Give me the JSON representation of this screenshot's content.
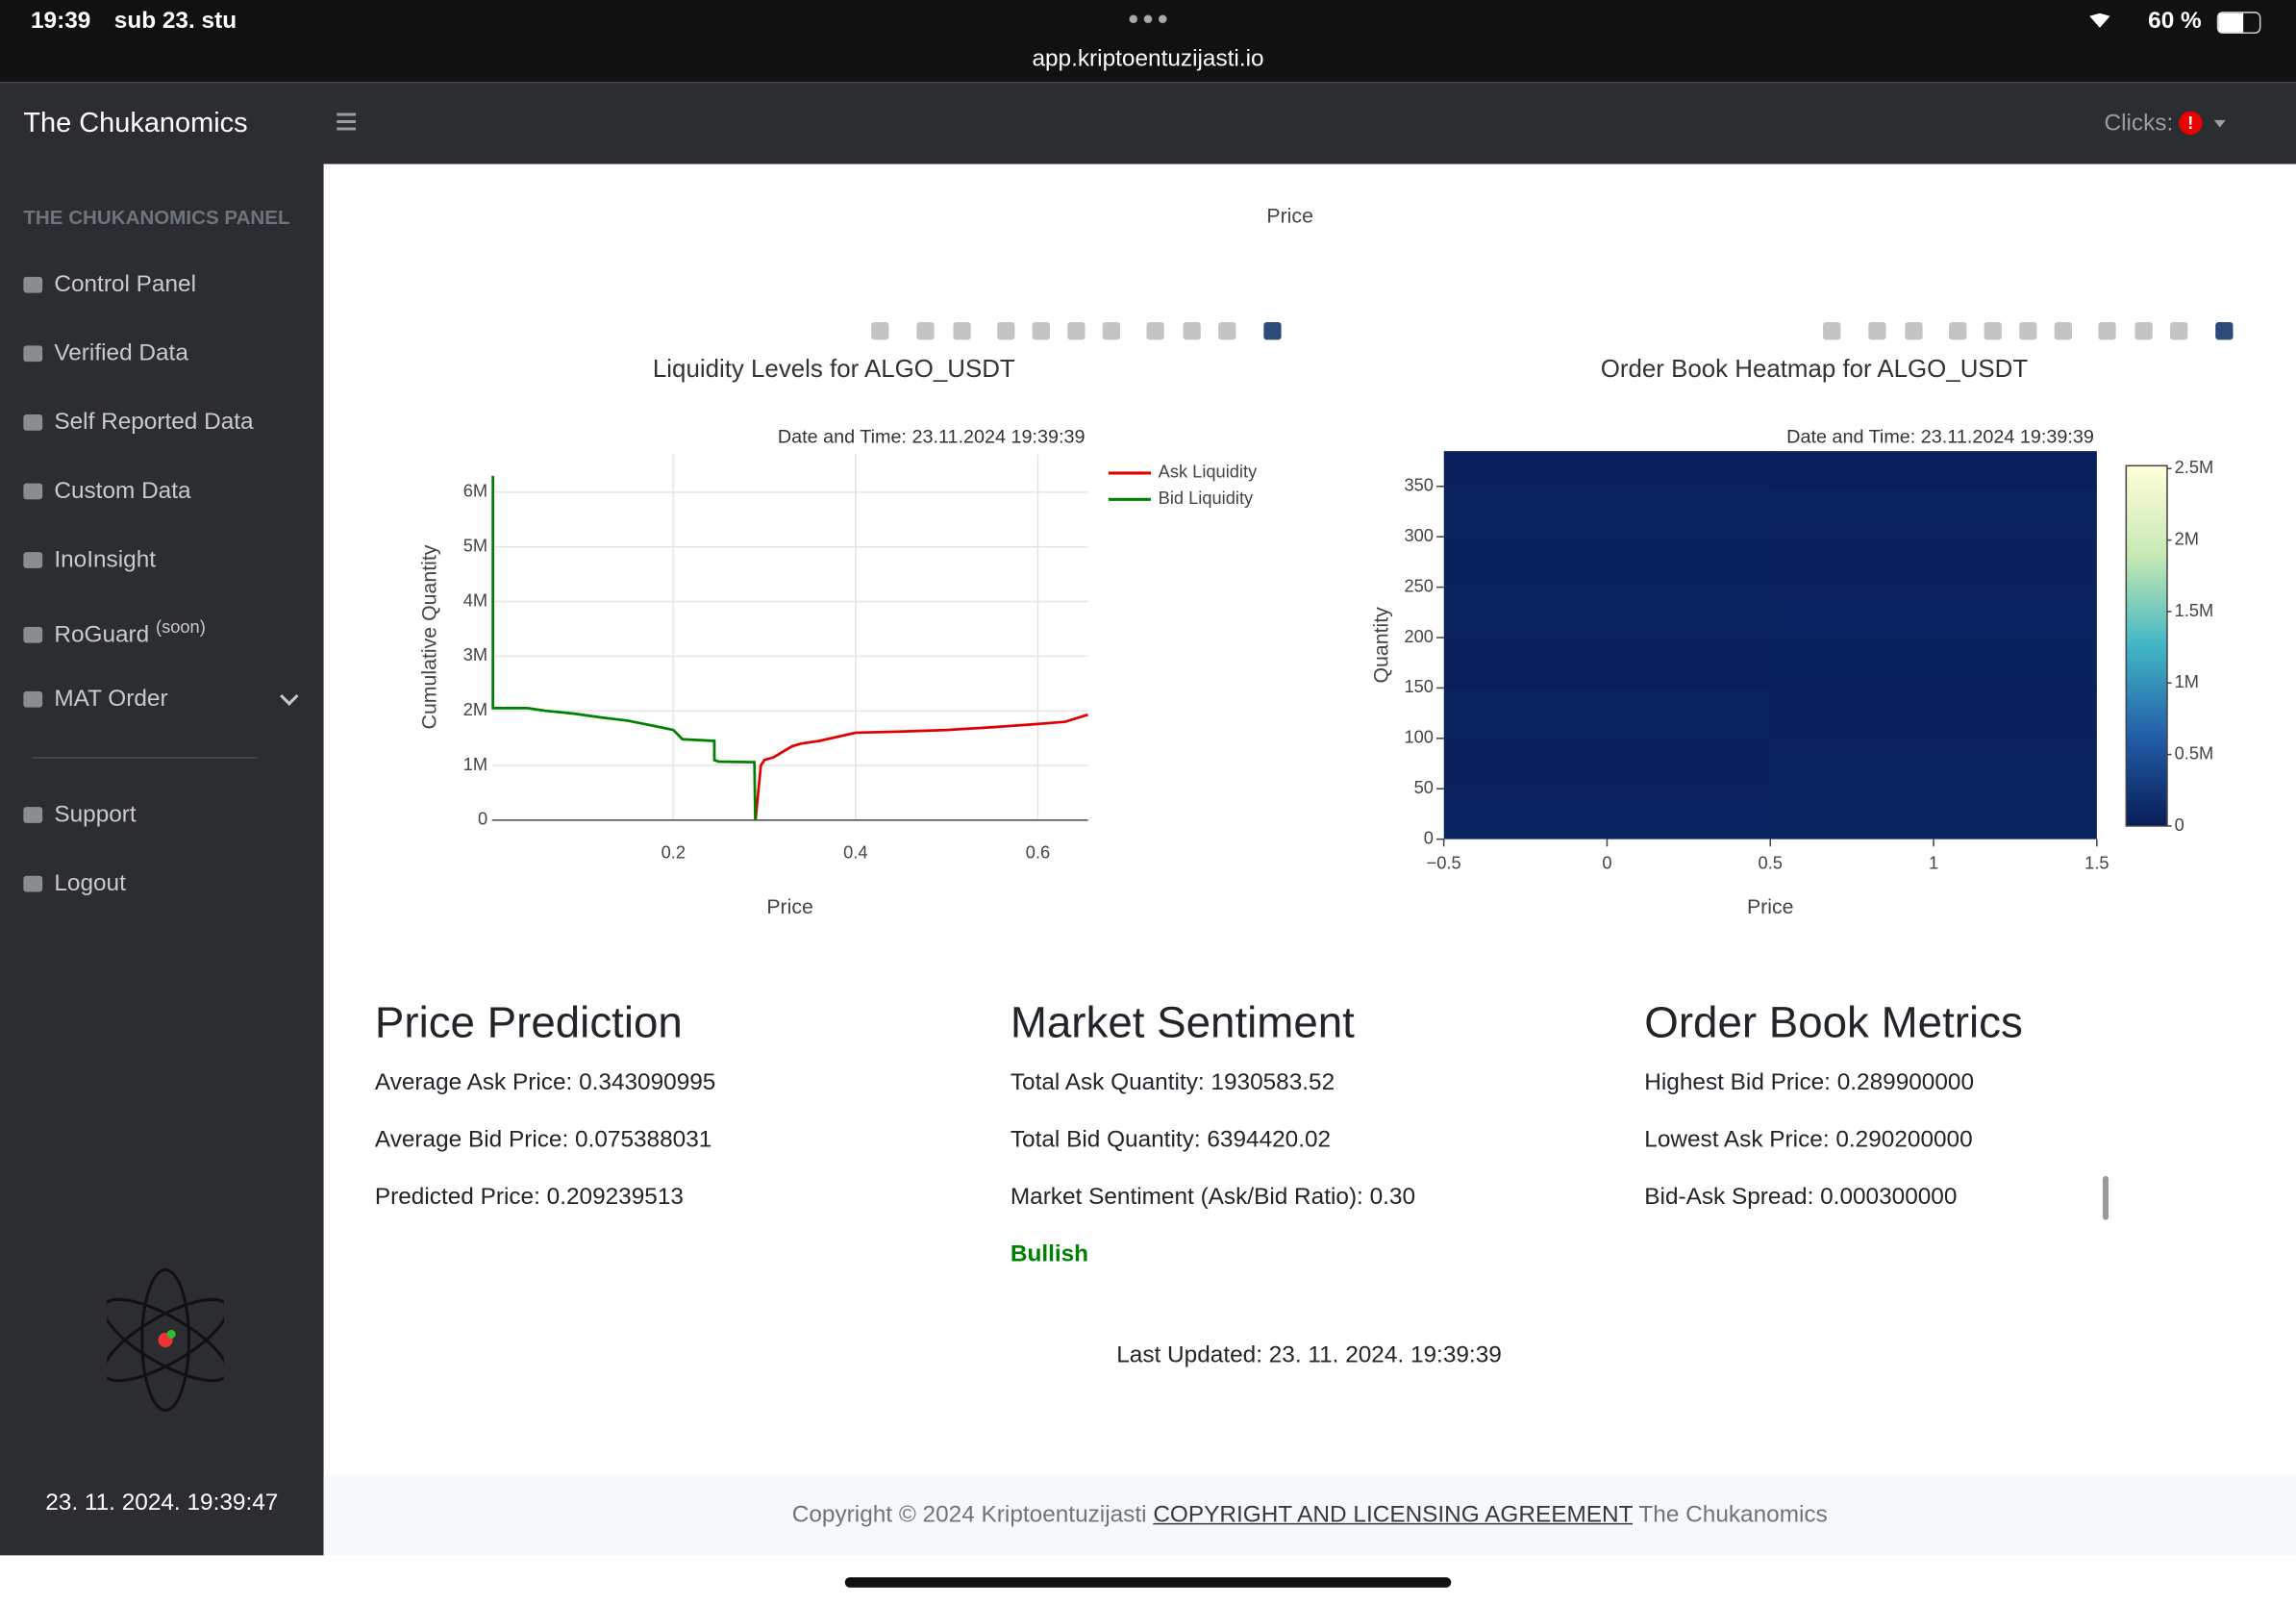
{
  "status_bar": {
    "time": "19:39",
    "date": "sub 23. stu",
    "url": "app.kriptoentuzijasti.io",
    "battery": "60 %"
  },
  "navbar": {
    "brand": "The Chukanomics",
    "clicks_label": "Clicks:",
    "clicks_badge": "!"
  },
  "sidebar": {
    "heading": "THE CHUKANOMICS PANEL",
    "items": [
      "Control Panel",
      "Verified Data",
      "Self Reported Data",
      "Custom Data",
      "InoInsight",
      "RoGuard",
      "MAT Order"
    ],
    "roguard_note": "(soon)",
    "bottom_items": [
      "Support",
      "Logout"
    ],
    "clock": "23. 11. 2024. 19:39:47"
  },
  "top_chart_x_label": "Price",
  "chart_data": [
    {
      "type": "line",
      "title": "Liquidity Levels for ALGO_USDT",
      "annotation": "Date and Time: 23.11.2024 19:39:39",
      "x_label": "Price",
      "y_label": "Cumulative Quantity",
      "grid": true,
      "legend": "right",
      "xlim": [
        0.001,
        0.655
      ],
      "ylim": [
        0,
        6700000
      ],
      "xticks": [
        0.2,
        0.4,
        0.6
      ],
      "yticks": [
        0,
        {
          "value": 1000000,
          "label": "1M"
        },
        {
          "value": 2000000,
          "label": "2M"
        },
        {
          "value": 3000000,
          "label": "3M"
        },
        {
          "value": 4000000,
          "label": "4M"
        },
        {
          "value": 5000000,
          "label": "5M"
        },
        {
          "value": 6000000,
          "label": "6M"
        }
      ],
      "series": [
        {
          "name": "Ask Liquidity",
          "color": "#e00000",
          "x": [
            0.2902,
            0.296,
            0.3,
            0.31,
            0.32,
            0.33,
            0.34,
            0.36,
            0.4,
            0.45,
            0.5,
            0.55,
            0.6,
            0.63,
            0.655
          ],
          "values": [
            0,
            1000000,
            1100000,
            1150000,
            1250000,
            1350000,
            1400000,
            1450000,
            1600000,
            1620000,
            1650000,
            1700000,
            1760000,
            1800000,
            1930000
          ]
        },
        {
          "name": "Bid Liquidity",
          "color": "#008000",
          "x": [
            0.002,
            0.002,
            0.04,
            0.06,
            0.09,
            0.12,
            0.15,
            0.18,
            0.2,
            0.21,
            0.245,
            0.245,
            0.25,
            0.289,
            0.2899
          ],
          "values": [
            6300000,
            2050000,
            2050000,
            2000000,
            1950000,
            1880000,
            1820000,
            1720000,
            1650000,
            1480000,
            1450000,
            1100000,
            1070000,
            1060000,
            0
          ]
        }
      ]
    },
    {
      "type": "heatmap",
      "title": "Order Book Heatmap for ALGO_USDT",
      "annotation": "Date and Time: 23.11.2024 19:39:39",
      "x_label": "Price",
      "y_label": "Quantity",
      "xlim": [
        -0.5,
        1.5
      ],
      "ylim": [
        0,
        385
      ],
      "xticks": [
        {
          "value": -0.5,
          "label": "−0.5"
        },
        0,
        0.5,
        1,
        1.5
      ],
      "yticks": [
        0,
        50,
        100,
        150,
        200,
        250,
        300,
        350
      ],
      "x": [
        0,
        1
      ],
      "y": [
        25,
        75,
        125,
        175,
        225,
        275,
        325,
        375
      ],
      "z": [
        [
          60000,
          50000
        ],
        [
          40000,
          45000
        ],
        [
          50000,
          40000
        ],
        [
          30000,
          35000
        ],
        [
          45000,
          60000
        ],
        [
          35000,
          40000
        ],
        [
          50000,
          45000
        ],
        [
          40000,
          30000
        ]
      ],
      "zlim": [
        0,
        2520000
      ],
      "zticks": [
        0,
        {
          "value": 500000,
          "label": "0.5M"
        },
        {
          "value": 1000000,
          "label": "1M"
        },
        {
          "value": 1500000,
          "label": "1.5M"
        },
        {
          "value": 2000000,
          "label": "2M"
        },
        {
          "value": 2500000,
          "label": "2.5M"
        }
      ],
      "colorscale": [
        "#081d58",
        "#225ea8",
        "#41b6c4",
        "#c7e9b4",
        "#ffffd9"
      ]
    }
  ],
  "sections": [
    {
      "title": "Price Prediction",
      "lines": [
        "Average Ask Price: 0.343090995",
        "Average Bid Price: 0.075388031",
        "Predicted Price: 0.209239513"
      ]
    },
    {
      "title": "Market Sentiment",
      "lines": [
        "Total Ask Quantity: 1930583.52",
        "Total Bid Quantity: 6394420.02",
        "Market Sentiment (Ask/Bid Ratio): 0.30"
      ],
      "sentiment": "Bullish"
    },
    {
      "title": "Order Book Metrics",
      "lines": [
        "Highest Bid Price: 0.289900000",
        "Lowest Ask Price: 0.290200000",
        "Bid-Ask Spread: 0.000300000"
      ]
    }
  ],
  "last_updated": "Last Updated: 23. 11. 2024. 19:39:39",
  "footer": {
    "text": "Copyright © 2024 Kriptoentuzijasti",
    "link": "COPYRIGHT AND LICENSING AGREEMENT",
    "suffix": "The Chukanomics"
  }
}
